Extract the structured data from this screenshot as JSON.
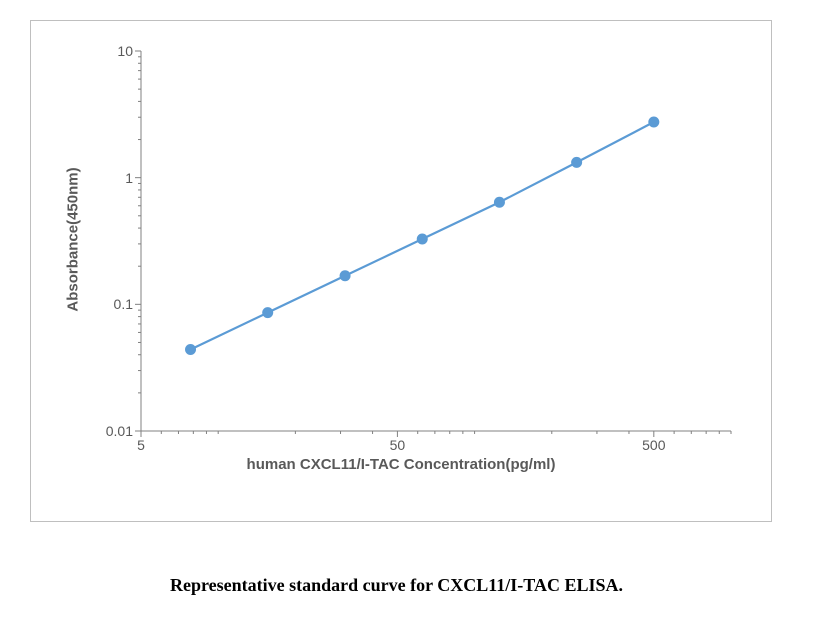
{
  "chart": {
    "type": "line",
    "xlabel": "human CXCL11/I-TAC Concentration(pg/ml)",
    "ylabel": "Absorbance(450nm)",
    "x_scale": "log",
    "y_scale": "log",
    "xlim": [
      5,
      1000
    ],
    "ylim": [
      0.01,
      10
    ],
    "x_ticks": [
      5,
      50,
      500
    ],
    "x_tick_labels": [
      "5",
      "50",
      "500"
    ],
    "y_ticks": [
      0.01,
      0.1,
      1,
      10
    ],
    "y_tick_labels": [
      "0.01",
      "0.1",
      "1",
      "10"
    ],
    "x_minor_ticks": [
      6,
      7,
      8,
      9,
      10,
      20,
      30,
      40,
      60,
      70,
      80,
      90,
      100,
      200,
      300,
      400,
      600,
      700,
      800,
      900,
      1000
    ],
    "y_minor_ticks": [
      0.02,
      0.03,
      0.04,
      0.05,
      0.06,
      0.07,
      0.08,
      0.09,
      0.2,
      0.3,
      0.4,
      0.5,
      0.6,
      0.7,
      0.8,
      0.9,
      2,
      3,
      4,
      5,
      6,
      7,
      8,
      9
    ],
    "data_x": [
      7.8,
      15.6,
      31.25,
      62.5,
      125,
      250,
      500
    ],
    "data_y": [
      0.044,
      0.086,
      0.168,
      0.328,
      0.64,
      1.32,
      2.75
    ],
    "line_color": "#5b9bd5",
    "marker_color": "#5b9bd5",
    "marker_size": 5.5,
    "line_width": 2.2,
    "axis_color": "#808080",
    "tick_font_color": "#595959",
    "tick_font_size": 14,
    "label_font_size": 15,
    "label_font_weight": "bold",
    "background_color": "#ffffff",
    "border_color": "#bfbfbf"
  },
  "caption": "Representative standard curve for CXCL11/I-TAC ELISA."
}
